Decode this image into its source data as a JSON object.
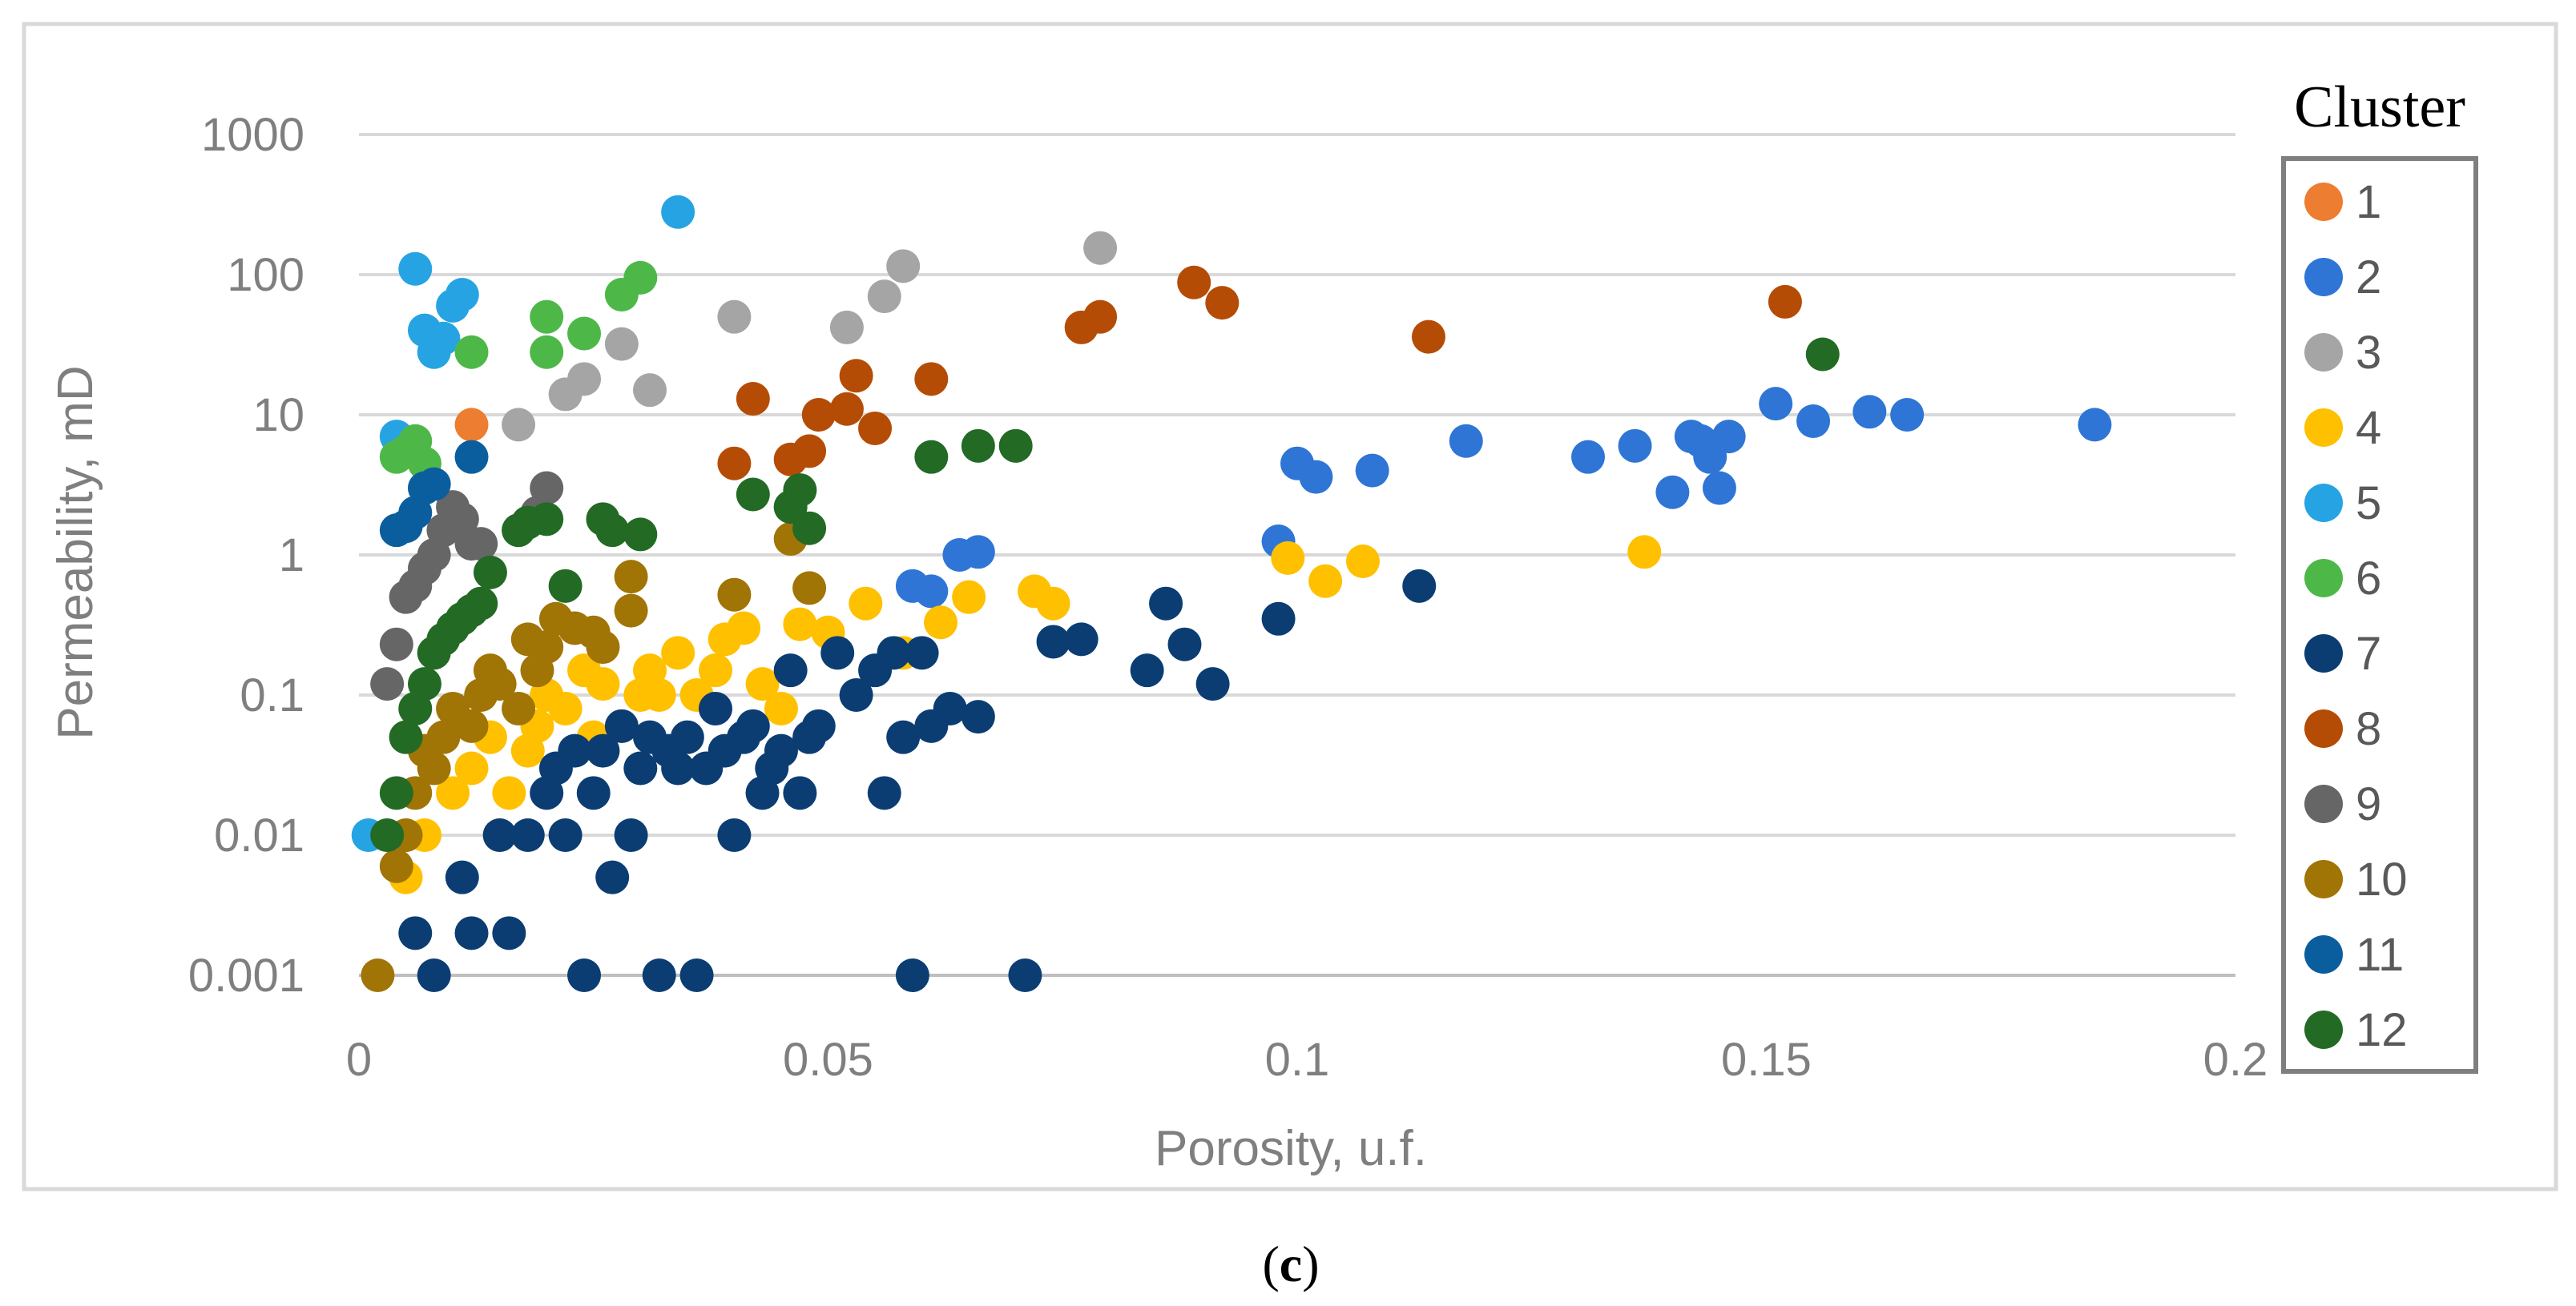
{
  "colors": {
    "grid": "#d9d9d9",
    "axis": "#bfbfbf",
    "frame": "#d9d9d9",
    "legend_border": "#7f7f7f",
    "tick_text": "#7f7f7f",
    "cluster_colors": [
      "#ED7D31",
      "#2E75D6",
      "#A5A5A5",
      "#FFC000",
      "#26A3E3",
      "#4DB848",
      "#0B3D73",
      "#B54C05",
      "#666666",
      "#A07405",
      "#0B5E9E",
      "#236A25"
    ]
  },
  "caption": {
    "open": "(",
    "letter": "c",
    "close": ")"
  },
  "chart_data": {
    "type": "scatter",
    "title": "",
    "xlabel": "Porosity, u.f.",
    "ylabel": "Permeability, mD",
    "xlim": [
      0,
      0.2
    ],
    "ylim": [
      0.001,
      1000
    ],
    "yscale": "log",
    "x_ticks": [
      0,
      0.05,
      0.1,
      0.15,
      0.2
    ],
    "x_tick_labels": [
      "0",
      "0.05",
      "0.1",
      "0.15",
      "0.2"
    ],
    "y_ticks": [
      0.001,
      0.01,
      0.1,
      1,
      10,
      100,
      1000
    ],
    "y_tick_labels": [
      "0.001",
      "0.01",
      "0.1",
      "1",
      "10",
      "100",
      "1000"
    ],
    "grid": "horizontal",
    "legend_title": "Cluster",
    "legend_position": "right",
    "series": [
      {
        "name": "1",
        "points": [
          [
            0.012,
            8.5
          ]
        ]
      },
      {
        "name": "2",
        "points": [
          [
            0.059,
            0.6
          ],
          [
            0.061,
            0.55
          ],
          [
            0.064,
            1.0
          ],
          [
            0.066,
            1.05
          ],
          [
            0.098,
            1.25
          ],
          [
            0.1,
            4.5
          ],
          [
            0.102,
            3.6
          ],
          [
            0.108,
            4.0
          ],
          [
            0.118,
            6.5
          ],
          [
            0.131,
            5.0
          ],
          [
            0.136,
            6.0
          ],
          [
            0.14,
            2.8
          ],
          [
            0.142,
            7.0
          ],
          [
            0.143,
            6.5
          ],
          [
            0.144,
            5.0
          ],
          [
            0.145,
            3.0
          ],
          [
            0.146,
            7.0
          ],
          [
            0.151,
            12
          ],
          [
            0.155,
            9.0
          ],
          [
            0.161,
            10.5
          ],
          [
            0.165,
            10.0
          ],
          [
            0.185,
            8.5
          ]
        ]
      },
      {
        "name": "3",
        "points": [
          [
            0.017,
            8.5
          ],
          [
            0.022,
            14
          ],
          [
            0.024,
            18
          ],
          [
            0.028,
            32
          ],
          [
            0.031,
            15
          ],
          [
            0.04,
            50
          ],
          [
            0.052,
            42
          ],
          [
            0.056,
            70
          ],
          [
            0.058,
            115
          ],
          [
            0.079,
            155
          ]
        ]
      },
      {
        "name": "4",
        "points": [
          [
            0.005,
            0.005
          ],
          [
            0.007,
            0.01
          ],
          [
            0.01,
            0.02
          ],
          [
            0.012,
            0.03
          ],
          [
            0.014,
            0.05
          ],
          [
            0.015,
            0.01
          ],
          [
            0.016,
            0.02
          ],
          [
            0.018,
            0.04
          ],
          [
            0.019,
            0.06
          ],
          [
            0.02,
            0.1
          ],
          [
            0.022,
            0.08
          ],
          [
            0.024,
            0.15
          ],
          [
            0.025,
            0.05
          ],
          [
            0.026,
            0.12
          ],
          [
            0.028,
            0.06
          ],
          [
            0.03,
            0.1
          ],
          [
            0.031,
            0.15
          ],
          [
            0.032,
            0.1
          ],
          [
            0.034,
            0.2
          ],
          [
            0.036,
            0.1
          ],
          [
            0.038,
            0.15
          ],
          [
            0.039,
            0.25
          ],
          [
            0.041,
            0.3
          ],
          [
            0.043,
            0.12
          ],
          [
            0.045,
            0.08
          ],
          [
            0.047,
            0.32
          ],
          [
            0.05,
            0.28
          ],
          [
            0.054,
            0.45
          ],
          [
            0.058,
            0.2
          ],
          [
            0.062,
            0.33
          ],
          [
            0.065,
            0.5
          ],
          [
            0.072,
            0.55
          ],
          [
            0.074,
            0.45
          ],
          [
            0.099,
            0.95
          ],
          [
            0.103,
            0.65
          ],
          [
            0.107,
            0.9
          ],
          [
            0.137,
            1.05
          ]
        ]
      },
      {
        "name": "5",
        "points": [
          [
            0.001,
            0.01
          ],
          [
            0.004,
            7.0
          ],
          [
            0.006,
            110
          ],
          [
            0.007,
            40
          ],
          [
            0.008,
            28
          ],
          [
            0.009,
            35
          ],
          [
            0.01,
            60
          ],
          [
            0.011,
            72
          ],
          [
            0.034,
            280
          ]
        ]
      },
      {
        "name": "6",
        "points": [
          [
            0.004,
            5.0
          ],
          [
            0.005,
            5.5
          ],
          [
            0.006,
            6.5
          ],
          [
            0.007,
            4.5
          ],
          [
            0.012,
            28
          ],
          [
            0.02,
            50
          ],
          [
            0.02,
            28
          ],
          [
            0.024,
            38
          ],
          [
            0.028,
            72
          ],
          [
            0.03,
            95
          ]
        ]
      },
      {
        "name": "7",
        "points": [
          [
            0.006,
            0.002
          ],
          [
            0.008,
            0.001
          ],
          [
            0.011,
            0.005
          ],
          [
            0.012,
            0.002
          ],
          [
            0.015,
            0.01
          ],
          [
            0.016,
            0.002
          ],
          [
            0.018,
            0.01
          ],
          [
            0.02,
            0.02
          ],
          [
            0.021,
            0.03
          ],
          [
            0.022,
            0.01
          ],
          [
            0.023,
            0.04
          ],
          [
            0.024,
            0.001
          ],
          [
            0.025,
            0.02
          ],
          [
            0.026,
            0.04
          ],
          [
            0.027,
            0.005
          ],
          [
            0.028,
            0.06
          ],
          [
            0.029,
            0.01
          ],
          [
            0.03,
            0.03
          ],
          [
            0.031,
            0.05
          ],
          [
            0.032,
            0.001
          ],
          [
            0.033,
            0.04
          ],
          [
            0.034,
            0.03
          ],
          [
            0.035,
            0.05
          ],
          [
            0.036,
            0.001
          ],
          [
            0.037,
            0.03
          ],
          [
            0.038,
            0.08
          ],
          [
            0.039,
            0.04
          ],
          [
            0.04,
            0.01
          ],
          [
            0.041,
            0.05
          ],
          [
            0.042,
            0.06
          ],
          [
            0.043,
            0.02
          ],
          [
            0.044,
            0.03
          ],
          [
            0.045,
            0.04
          ],
          [
            0.046,
            0.15
          ],
          [
            0.047,
            0.02
          ],
          [
            0.048,
            0.05
          ],
          [
            0.049,
            0.06
          ],
          [
            0.051,
            0.2
          ],
          [
            0.053,
            0.1
          ],
          [
            0.055,
            0.15
          ],
          [
            0.056,
            0.02
          ],
          [
            0.057,
            0.2
          ],
          [
            0.058,
            0.05
          ],
          [
            0.059,
            0.001
          ],
          [
            0.06,
            0.2
          ],
          [
            0.061,
            0.06
          ],
          [
            0.063,
            0.08
          ],
          [
            0.066,
            0.07
          ],
          [
            0.071,
            0.001
          ],
          [
            0.074,
            0.24
          ],
          [
            0.077,
            0.25
          ],
          [
            0.084,
            0.15
          ],
          [
            0.086,
            0.45
          ],
          [
            0.088,
            0.23
          ],
          [
            0.091,
            0.12
          ],
          [
            0.098,
            0.35
          ],
          [
            0.113,
            0.6
          ]
        ]
      },
      {
        "name": "8",
        "points": [
          [
            0.04,
            4.5
          ],
          [
            0.042,
            13
          ],
          [
            0.046,
            4.8
          ],
          [
            0.048,
            5.5
          ],
          [
            0.049,
            10
          ],
          [
            0.052,
            11
          ],
          [
            0.053,
            19
          ],
          [
            0.055,
            8.0
          ],
          [
            0.061,
            18
          ],
          [
            0.077,
            42
          ],
          [
            0.079,
            50
          ],
          [
            0.089,
            88
          ],
          [
            0.092,
            63
          ],
          [
            0.114,
            36
          ],
          [
            0.152,
            64
          ]
        ]
      },
      {
        "name": "9",
        "points": [
          [
            0.003,
            0.12
          ],
          [
            0.004,
            0.23
          ],
          [
            0.005,
            0.5
          ],
          [
            0.006,
            0.6
          ],
          [
            0.007,
            0.8
          ],
          [
            0.008,
            1.0
          ],
          [
            0.009,
            1.5
          ],
          [
            0.01,
            2.2
          ],
          [
            0.011,
            1.8
          ],
          [
            0.012,
            1.2
          ],
          [
            0.013,
            1.2
          ],
          [
            0.019,
            2.0
          ],
          [
            0.02,
            3.0
          ]
        ]
      },
      {
        "name": "10",
        "points": [
          [
            0.002,
            0.001
          ],
          [
            0.004,
            0.006
          ],
          [
            0.005,
            0.01
          ],
          [
            0.006,
            0.02
          ],
          [
            0.007,
            0.04
          ],
          [
            0.008,
            0.03
          ],
          [
            0.009,
            0.05
          ],
          [
            0.01,
            0.08
          ],
          [
            0.012,
            0.06
          ],
          [
            0.013,
            0.1
          ],
          [
            0.014,
            0.15
          ],
          [
            0.015,
            0.12
          ],
          [
            0.017,
            0.08
          ],
          [
            0.018,
            0.25
          ],
          [
            0.019,
            0.15
          ],
          [
            0.02,
            0.22
          ],
          [
            0.021,
            0.35
          ],
          [
            0.023,
            0.3
          ],
          [
            0.025,
            0.28
          ],
          [
            0.026,
            0.22
          ],
          [
            0.029,
            0.7
          ],
          [
            0.029,
            0.4
          ],
          [
            0.04,
            0.52
          ],
          [
            0.046,
            1.3
          ],
          [
            0.048,
            0.58
          ]
        ]
      },
      {
        "name": "11",
        "points": [
          [
            0.004,
            1.5
          ],
          [
            0.005,
            1.6
          ],
          [
            0.006,
            2.0
          ],
          [
            0.007,
            3.0
          ],
          [
            0.008,
            3.2
          ],
          [
            0.012,
            5.0
          ]
        ]
      },
      {
        "name": "12",
        "points": [
          [
            0.003,
            0.01
          ],
          [
            0.004,
            0.02
          ],
          [
            0.005,
            0.05
          ],
          [
            0.006,
            0.08
          ],
          [
            0.007,
            0.12
          ],
          [
            0.008,
            0.2
          ],
          [
            0.009,
            0.25
          ],
          [
            0.01,
            0.3
          ],
          [
            0.011,
            0.35
          ],
          [
            0.012,
            0.4
          ],
          [
            0.013,
            0.45
          ],
          [
            0.014,
            0.75
          ],
          [
            0.017,
            1.5
          ],
          [
            0.018,
            1.7
          ],
          [
            0.02,
            1.8
          ],
          [
            0.022,
            0.6
          ],
          [
            0.026,
            1.8
          ],
          [
            0.027,
            1.5
          ],
          [
            0.03,
            1.4
          ],
          [
            0.042,
            2.7
          ],
          [
            0.046,
            2.2
          ],
          [
            0.047,
            2.9
          ],
          [
            0.048,
            1.55
          ],
          [
            0.061,
            5.0
          ],
          [
            0.066,
            6.0
          ],
          [
            0.07,
            6.0
          ],
          [
            0.156,
            27
          ]
        ]
      }
    ]
  }
}
